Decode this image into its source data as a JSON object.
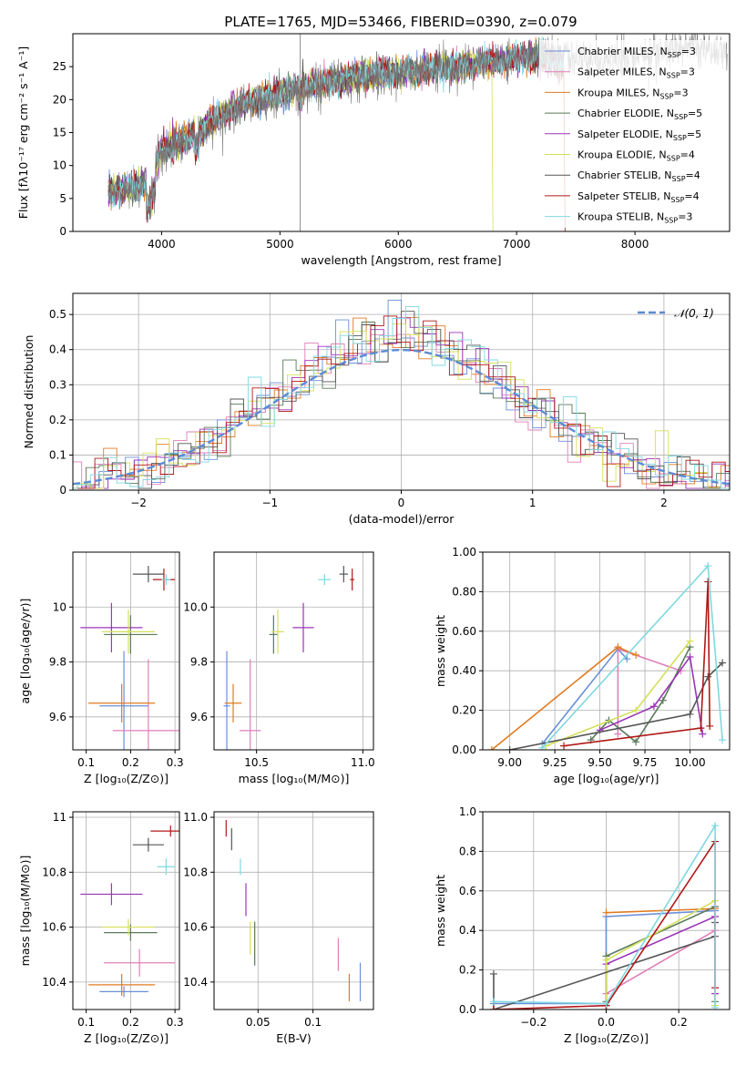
{
  "figure_title": "PLATE=1765, MJD=53466, FIBERID=0390, z=0.079",
  "colors": {
    "Chabrier MILES": "#6a8fd8",
    "Salpeter MILES": "#e07fb8",
    "Kroupa MILES": "#e07b22",
    "Chabrier ELODIE": "#5a7a5a",
    "Salpeter ELODIE": "#9a35b8",
    "Kroupa ELODIE": "#d4e05a",
    "Chabrier STELIB": "#555555",
    "Salpeter STELIB": "#b01818",
    "Kroupa STELIB": "#80d8e0"
  },
  "chart_data": [
    {
      "id": "spectrum",
      "type": "line",
      "title": "PLATE=1765, MJD=53466, FIBERID=0390, z=0.079",
      "xlabel": "wavelength [Angstrom, rest frame]",
      "ylabel": "Flux [fλ10⁻¹⁷ erg cm⁻² s⁻¹ A⁻¹]",
      "xlim": [
        3250,
        8800
      ],
      "ylim": [
        0,
        30
      ],
      "xticks": [
        4000,
        5000,
        6000,
        7000,
        8000
      ],
      "yticks": [
        0,
        5,
        10,
        15,
        20,
        25
      ],
      "grid": false,
      "legend_position": "right",
      "legend": [
        "Chabrier MILES, N_SSP=3",
        "Salpeter MILES, N_SSP=3",
        "Kroupa MILES, N_SSP=3",
        "Chabrier ELODIE, N_SSP=5",
        "Salpeter ELODIE, N_SSP=5",
        "Kroupa ELODIE, N_SSP=4",
        "Chabrier STELIB, N_SSP=4",
        "Salpeter STELIB, N_SSP=4",
        "Kroupa STELIB, N_SSP=3"
      ],
      "continuum": {
        "x": [
          3550,
          3650,
          3800,
          3900,
          4000,
          4150,
          4300,
          4500,
          4700,
          4900,
          5100,
          5300,
          5500,
          5700,
          5900,
          6100,
          6300,
          6500,
          6700,
          6900,
          7100,
          7300,
          7400
        ],
        "y": [
          6,
          6.5,
          7,
          8,
          12.5,
          13.5,
          15,
          17.5,
          19.5,
          20.5,
          21.5,
          22.5,
          23,
          23.5,
          24,
          24.2,
          24.8,
          25,
          25.5,
          26,
          26.5,
          26,
          25
        ]
      },
      "data_curve": {
        "x": [
          3550,
          3650,
          3800,
          3900,
          4000,
          4150,
          4300,
          4500,
          4700,
          4900,
          5100,
          5300,
          5500,
          5700,
          5900,
          6100,
          6300,
          6500,
          6700,
          6900,
          7100,
          7300,
          7500,
          7700,
          7900,
          8100,
          8300,
          8500,
          8700
        ],
        "y": [
          5,
          6,
          6.5,
          7.5,
          12,
          13,
          14.5,
          17,
          19,
          20,
          21,
          22,
          22.5,
          23,
          23.5,
          24,
          24.5,
          25,
          25.5,
          26,
          26.5,
          27,
          26.5,
          26,
          26.5,
          27,
          27.5,
          28,
          27.5
        ]
      },
      "features": {
        "salpeter_stelib_drop_x": 7410,
        "kroupa_elodie_drop_x": 6800,
        "spike_x": 5170
      }
    },
    {
      "id": "residuals",
      "type": "histogram",
      "xlabel": "(data-model)/error",
      "ylabel": "Normed distribution",
      "xlim": [
        -2.5,
        2.5
      ],
      "ylim": [
        0,
        0.56
      ],
      "xticks": [
        -2,
        -1,
        0,
        1,
        2
      ],
      "yticks": [
        0.0,
        0.1,
        0.2,
        0.3,
        0.4,
        0.5
      ],
      "grid": true,
      "legend_position": "top-right",
      "legend": [
        "𝒩(0, 1)"
      ],
      "bin_width": 0.1
    },
    {
      "id": "age_vs_Z",
      "type": "scatter",
      "xlabel": "Z [log₁₀(Z/Z⊙)]",
      "ylabel": "age [log₁₀(age/yr)]",
      "xlim": [
        0.07,
        0.31
      ],
      "ylim": [
        9.48,
        10.2
      ],
      "xticks": [
        0.1,
        0.2,
        0.3
      ],
      "yticks": [
        9.6,
        9.8,
        10.0
      ],
      "grid": true,
      "points": [
        {
          "series": "Chabrier MILES",
          "x": 0.185,
          "y": 9.64,
          "xerr": 0.055,
          "yerr": 0.2
        },
        {
          "series": "Salpeter MILES",
          "x": 0.24,
          "y": 9.55,
          "xerr": 0.08,
          "yerr": 0.26
        },
        {
          "series": "Kroupa MILES",
          "x": 0.18,
          "y": 9.65,
          "xerr": 0.075,
          "yerr": 0.07
        },
        {
          "series": "Chabrier ELODIE",
          "x": 0.2,
          "y": 9.9,
          "xerr": 0.06,
          "yerr": 0.07
        },
        {
          "series": "Salpeter ELODIE",
          "x": 0.157,
          "y": 9.925,
          "xerr": 0.07,
          "yerr": 0.09
        },
        {
          "series": "Kroupa ELODIE",
          "x": 0.195,
          "y": 9.91,
          "xerr": 0.06,
          "yerr": 0.08
        },
        {
          "series": "Chabrier STELIB",
          "x": 0.24,
          "y": 10.12,
          "xerr": 0.035,
          "yerr": 0.03
        },
        {
          "series": "Salpeter STELIB",
          "x": 0.275,
          "y": 10.1,
          "xerr": 0.025,
          "yerr": 0.04
        },
        {
          "series": "Kroupa STELIB",
          "x": 0.28,
          "y": 10.1,
          "xerr": 0.01,
          "yerr": 0.02
        }
      ]
    },
    {
      "id": "age_vs_mass",
      "type": "scatter",
      "xlabel": "mass [log₁₀(M/M⊙)]",
      "ylabel": "",
      "xlim": [
        10.3,
        11.05
      ],
      "ylim": [
        9.48,
        10.2
      ],
      "xticks": [
        10.5,
        11.0
      ],
      "yticks": [
        9.6,
        9.8,
        10.0
      ],
      "grid": true,
      "points": [
        {
          "series": "Chabrier MILES",
          "x": 10.36,
          "y": 9.64,
          "xerr": 0.015,
          "yerr": 0.2
        },
        {
          "series": "Salpeter MILES",
          "x": 10.47,
          "y": 9.55,
          "xerr": 0.05,
          "yerr": 0.26
        },
        {
          "series": "Kroupa MILES",
          "x": 10.39,
          "y": 9.65,
          "xerr": 0.04,
          "yerr": 0.07
        },
        {
          "series": "Chabrier ELODIE",
          "x": 10.58,
          "y": 9.9,
          "xerr": 0.02,
          "yerr": 0.07
        },
        {
          "series": "Salpeter ELODIE",
          "x": 10.72,
          "y": 9.925,
          "xerr": 0.05,
          "yerr": 0.09
        },
        {
          "series": "Kroupa ELODIE",
          "x": 10.6,
          "y": 9.91,
          "xerr": 0.03,
          "yerr": 0.08
        },
        {
          "series": "Chabrier STELIB",
          "x": 10.91,
          "y": 10.12,
          "xerr": 0.02,
          "yerr": 0.03
        },
        {
          "series": "Salpeter STELIB",
          "x": 10.95,
          "y": 10.1,
          "xerr": 0.01,
          "yerr": 0.04
        },
        {
          "series": "Kroupa STELIB",
          "x": 10.82,
          "y": 10.1,
          "xerr": 0.03,
          "yerr": 0.02
        }
      ]
    },
    {
      "id": "weight_vs_age",
      "type": "line",
      "xlabel": "age [log₁₀(age/yr)]",
      "ylabel": "mass weight",
      "xlim": [
        8.85,
        10.22
      ],
      "ylim": [
        0,
        1
      ],
      "xticks": [
        9.0,
        9.25,
        9.5,
        9.75,
        10.0
      ],
      "yticks": [
        0.0,
        0.2,
        0.4,
        0.6,
        0.8,
        1.0
      ],
      "grid": true,
      "series": [
        {
          "name": "Chabrier MILES",
          "x": [
            9.18,
            9.6,
            9.65
          ],
          "y": [
            0.03,
            0.51,
            0.46
          ]
        },
        {
          "name": "Salpeter MILES",
          "x": [
            9.6,
            9.6,
            9.95
          ],
          "y": [
            0.08,
            0.51,
            0.4
          ]
        },
        {
          "name": "Kroupa MILES",
          "x": [
            8.9,
            9.6,
            9.7
          ],
          "y": [
            0.0,
            0.52,
            0.48
          ]
        },
        {
          "name": "Chabrier ELODIE",
          "x": [
            9.45,
            9.55,
            9.7,
            9.85,
            10.0
          ],
          "y": [
            0.05,
            0.15,
            0.04,
            0.25,
            0.52
          ]
        },
        {
          "name": "Salpeter ELODIE",
          "x": [
            9.5,
            9.8,
            10.0,
            10.07
          ],
          "y": [
            0.1,
            0.22,
            0.47,
            0.08
          ]
        },
        {
          "name": "Kroupa ELODIE",
          "x": [
            9.2,
            9.7,
            10.0
          ],
          "y": [
            0.02,
            0.2,
            0.55
          ]
        },
        {
          "name": "Chabrier STELIB",
          "x": [
            9.0,
            10.0,
            10.1,
            10.18
          ],
          "y": [
            0.0,
            0.18,
            0.37,
            0.44
          ]
        },
        {
          "name": "Salpeter STELIB",
          "x": [
            9.3,
            10.06,
            10.1,
            10.11
          ],
          "y": [
            0.02,
            0.11,
            0.85,
            0.12
          ]
        },
        {
          "name": "Kroupa STELIB",
          "x": [
            9.18,
            10.1,
            10.18
          ],
          "y": [
            0.01,
            0.93,
            0.05
          ]
        }
      ]
    },
    {
      "id": "mass_vs_Z",
      "type": "scatter",
      "xlabel": "Z [log₁₀(Z/Z⊙)]",
      "ylabel": "mass [log₁₀(M/M⊙)]",
      "xlim": [
        0.07,
        0.31
      ],
      "ylim": [
        10.3,
        11.02
      ],
      "xticks": [
        0.1,
        0.2,
        0.3
      ],
      "yticks": [
        10.4,
        10.6,
        10.8,
        11.0
      ],
      "grid": true,
      "points": [
        {
          "series": "Chabrier MILES",
          "x": 0.185,
          "y": 10.365,
          "xerr": 0.055,
          "yerr": 0.02
        },
        {
          "series": "Salpeter MILES",
          "x": 0.22,
          "y": 10.47,
          "xerr": 0.08,
          "yerr": 0.05
        },
        {
          "series": "Kroupa MILES",
          "x": 0.18,
          "y": 10.39,
          "xerr": 0.075,
          "yerr": 0.04
        },
        {
          "series": "Chabrier ELODIE",
          "x": 0.2,
          "y": 10.58,
          "xerr": 0.06,
          "yerr": 0.03
        },
        {
          "series": "Salpeter ELODIE",
          "x": 0.157,
          "y": 10.72,
          "xerr": 0.07,
          "yerr": 0.04
        },
        {
          "series": "Kroupa ELODIE",
          "x": 0.195,
          "y": 10.6,
          "xerr": 0.06,
          "yerr": 0.03
        },
        {
          "series": "Chabrier STELIB",
          "x": 0.24,
          "y": 10.9,
          "xerr": 0.035,
          "yerr": 0.025
        },
        {
          "series": "Salpeter STELIB",
          "x": 0.29,
          "y": 10.95,
          "xerr": 0.045,
          "yerr": 0.02
        },
        {
          "series": "Kroupa STELIB",
          "x": 0.28,
          "y": 10.82,
          "xerr": 0.02,
          "yerr": 0.03
        }
      ]
    },
    {
      "id": "mass_vs_ebv",
      "type": "scatter",
      "xlabel": "E(B-V)",
      "ylabel": "",
      "xlim": [
        0.01,
        0.155
      ],
      "ylim": [
        10.3,
        11.02
      ],
      "xticks": [
        0.05,
        0.1
      ],
      "yticks": [
        10.4,
        10.6,
        10.8,
        11.0
      ],
      "grid": true,
      "points": [
        {
          "series": "Chabrier MILES",
          "x": 0.143,
          "y": 10.4,
          "xerr": 0.0,
          "yerr": 0.07
        },
        {
          "series": "Salpeter MILES",
          "x": 0.123,
          "y": 10.5,
          "xerr": 0.0,
          "yerr": 0.06
        },
        {
          "series": "Kroupa MILES",
          "x": 0.133,
          "y": 10.38,
          "xerr": 0.0,
          "yerr": 0.05
        },
        {
          "series": "Chabrier ELODIE",
          "x": 0.047,
          "y": 10.54,
          "xerr": 0.0,
          "yerr": 0.08
        },
        {
          "series": "Salpeter ELODIE",
          "x": 0.039,
          "y": 10.7,
          "xerr": 0.0,
          "yerr": 0.06
        },
        {
          "series": "Kroupa ELODIE",
          "x": 0.043,
          "y": 10.56,
          "xerr": 0.0,
          "yerr": 0.06
        },
        {
          "series": "Chabrier STELIB",
          "x": 0.026,
          "y": 10.92,
          "xerr": 0.0,
          "yerr": 0.04
        },
        {
          "series": "Salpeter STELIB",
          "x": 0.021,
          "y": 10.96,
          "xerr": 0.0,
          "yerr": 0.03
        },
        {
          "series": "Kroupa STELIB",
          "x": 0.034,
          "y": 10.82,
          "xerr": 0.0,
          "yerr": 0.03
        }
      ]
    },
    {
      "id": "weight_vs_Z",
      "type": "line",
      "xlabel": "Z [log₁₀(Z/Z⊙)]",
      "ylabel": "mass weight",
      "xlim": [
        -0.34,
        0.34
      ],
      "ylim": [
        0,
        1
      ],
      "xticks": [
        -0.2,
        0.0,
        0.2
      ],
      "yticks": [
        0.0,
        0.2,
        0.4,
        0.6,
        0.8,
        1.0
      ],
      "grid": true,
      "series": [
        {
          "name": "Chabrier MILES",
          "x": [
            -0.31,
            0.0,
            0.0,
            0.3
          ],
          "y": [
            0.03,
            0.03,
            0.47,
            0.5
          ]
        },
        {
          "name": "Salpeter MILES",
          "x": [
            0.0,
            0.0,
            0.3
          ],
          "y": [
            0.0,
            0.08,
            0.4
          ]
        },
        {
          "name": "Kroupa MILES",
          "x": [
            0.0,
            0.3
          ],
          "y": [
            0.49,
            0.51
          ]
        },
        {
          "name": "Chabrier ELODIE",
          "x": [
            0.0,
            0.0,
            0.3,
            0.3
          ],
          "y": [
            0.04,
            0.27,
            0.52,
            0.04
          ]
        },
        {
          "name": "Salpeter ELODIE",
          "x": [
            0.0,
            0.0,
            0.3,
            0.3
          ],
          "y": [
            0.02,
            0.23,
            0.47,
            0.08
          ]
        },
        {
          "name": "Kroupa ELODIE",
          "x": [
            0.0,
            0.0,
            0.3,
            0.3
          ],
          "y": [
            0.02,
            0.25,
            0.55,
            0.02
          ]
        },
        {
          "name": "Chabrier STELIB",
          "x": [
            -0.31,
            -0.31,
            0.3,
            0.3
          ],
          "y": [
            0.18,
            0.0,
            0.37,
            0.44
          ]
        },
        {
          "name": "Salpeter STELIB",
          "x": [
            -0.31,
            0.0,
            0.3,
            0.3
          ],
          "y": [
            0.0,
            0.02,
            0.85,
            0.11
          ]
        },
        {
          "name": "Kroupa STELIB",
          "x": [
            -0.31,
            0.0,
            0.3,
            0.3
          ],
          "y": [
            0.04,
            0.03,
            0.93,
            0.01
          ]
        }
      ]
    }
  ]
}
